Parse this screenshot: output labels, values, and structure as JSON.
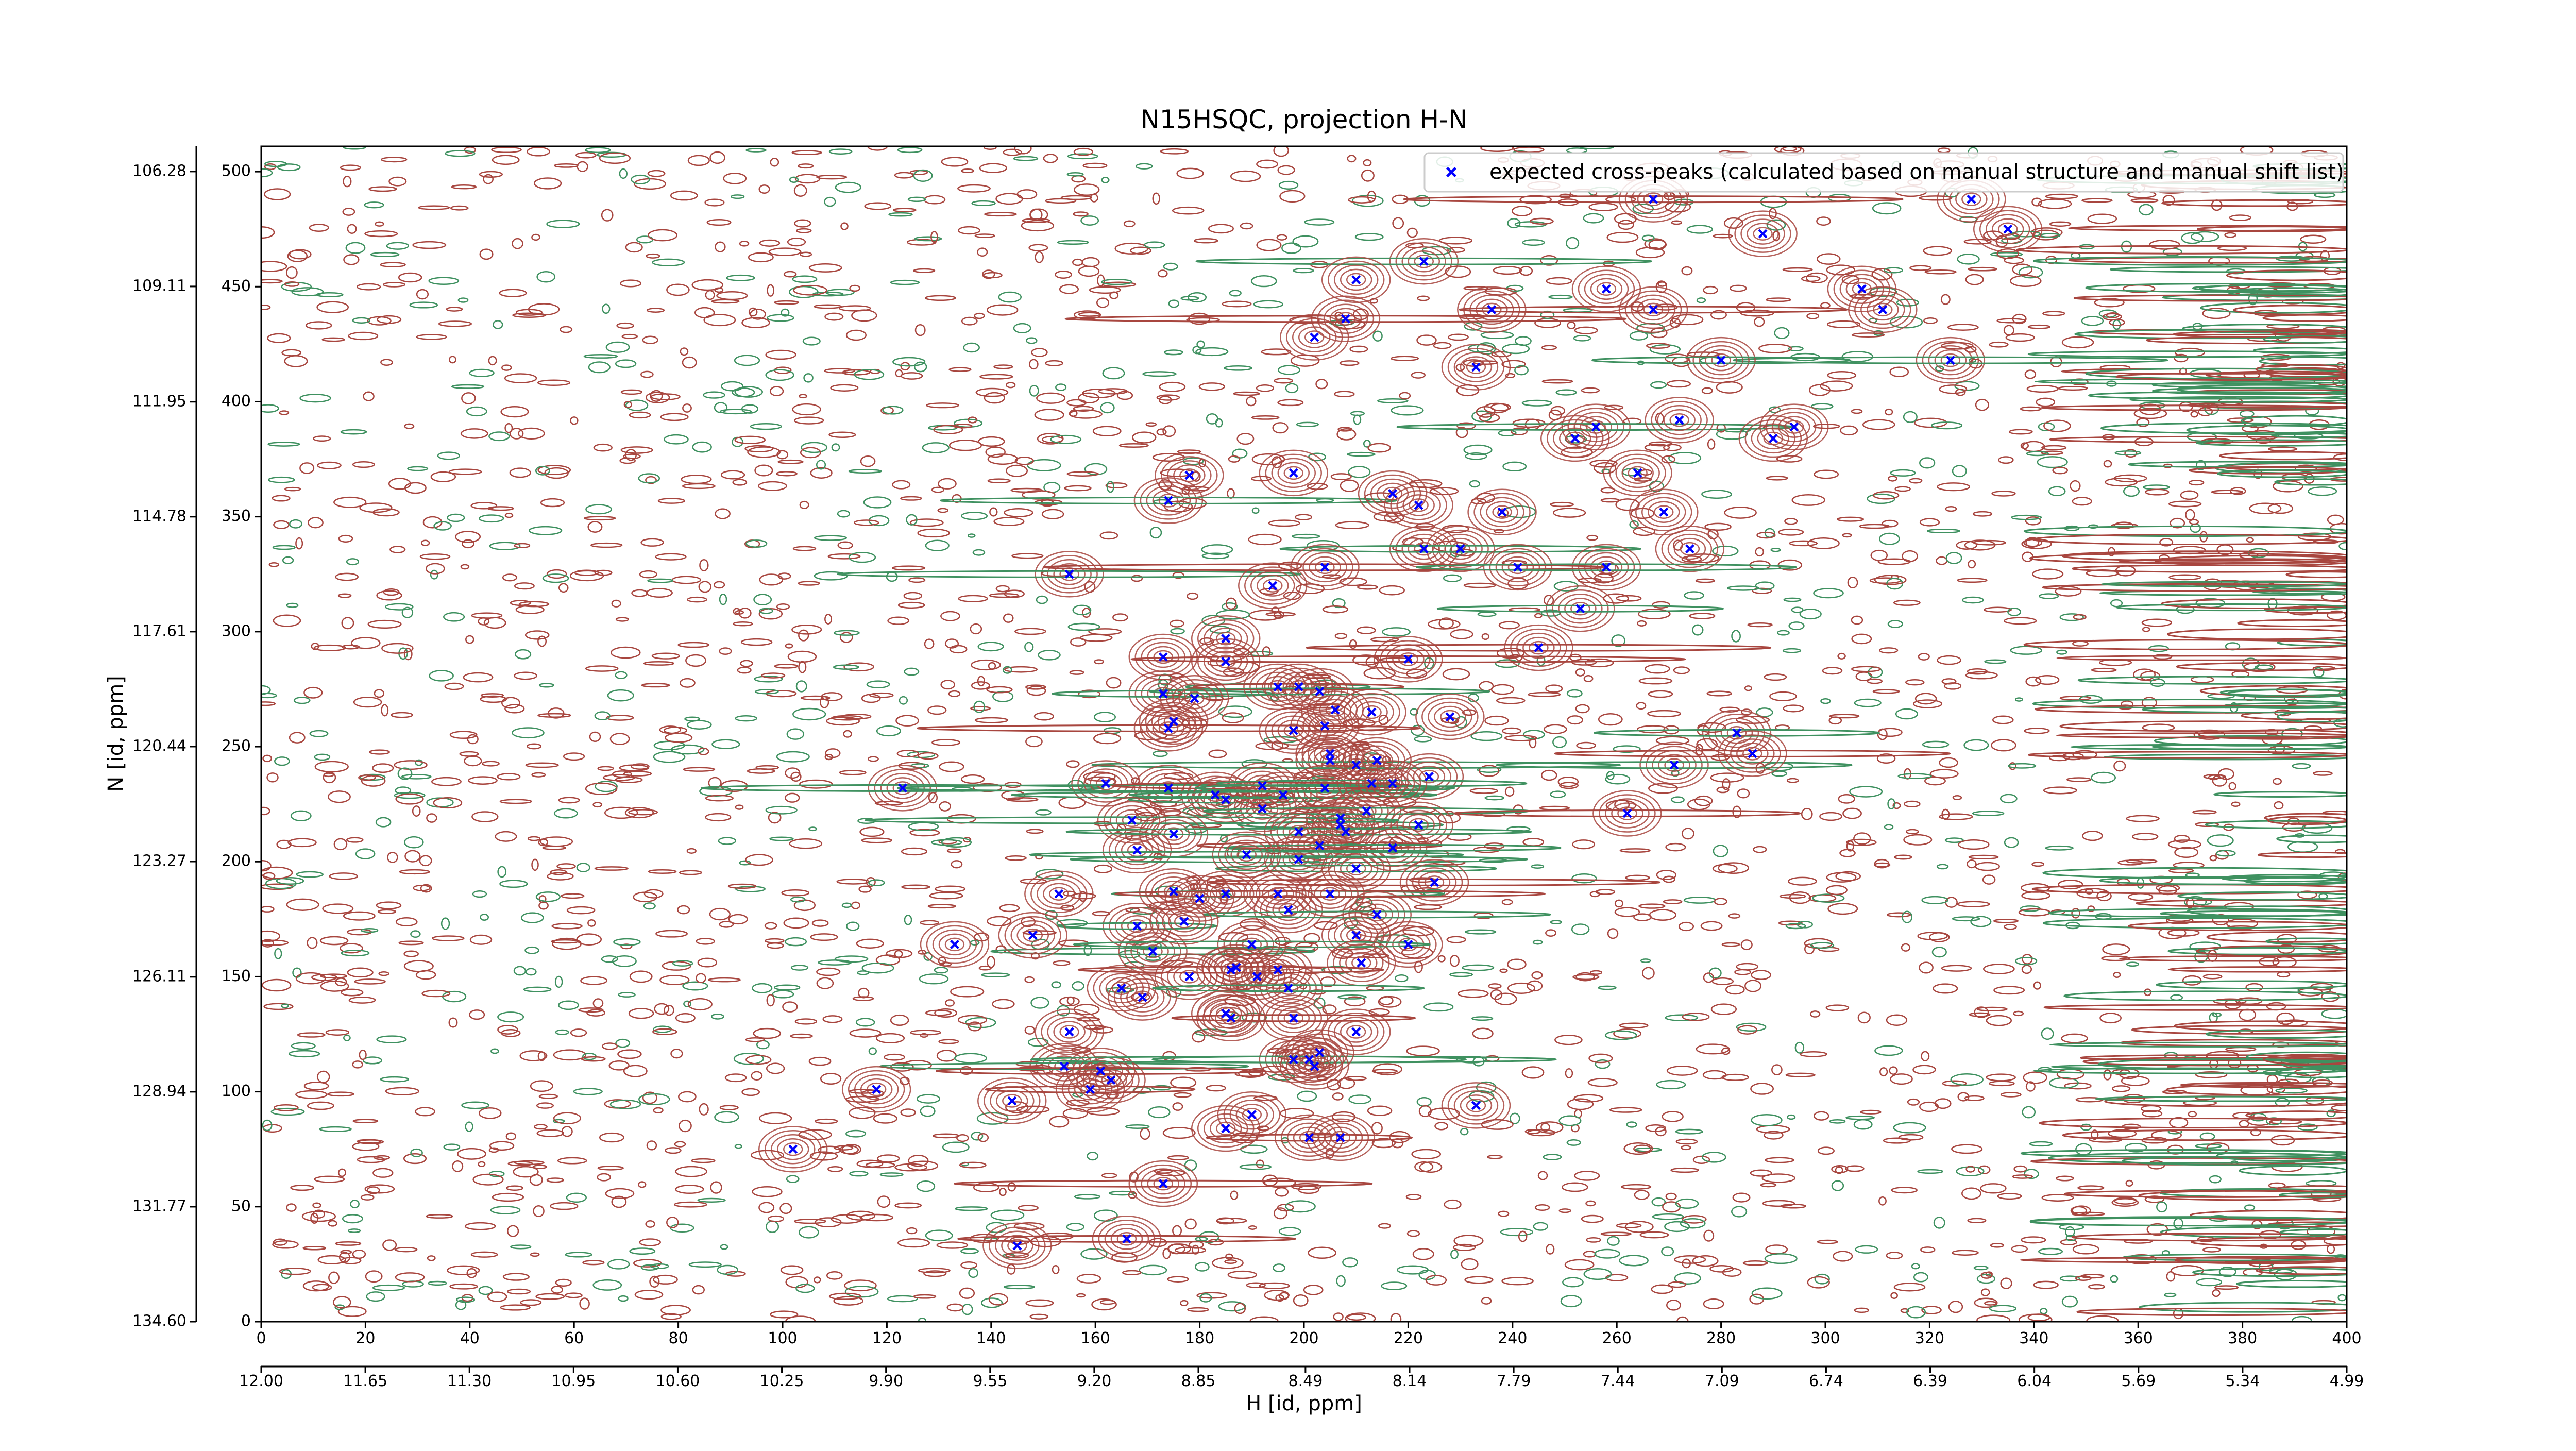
{
  "chart_data": {
    "type": "scatter",
    "title": "N15HSQC, projection H-N",
    "x_label": "H [id, ppm]",
    "y_label": "N [id, ppm]",
    "xlim": [
      0,
      400
    ],
    "xticks": [
      0,
      20,
      40,
      60,
      80,
      100,
      120,
      140,
      160,
      180,
      200,
      220,
      240,
      260,
      280,
      300,
      320,
      340,
      360,
      380,
      400
    ],
    "ylim": [
      0,
      511
    ],
    "yticks": [
      0,
      50,
      100,
      150,
      200,
      250,
      300,
      350,
      400,
      450,
      500
    ],
    "x2lim": [
      12,
      4.99
    ],
    "x2ticks": [
      {
        "value": 12,
        "label": "12.00"
      },
      11.65,
      {
        "value": 11.3,
        "label": "11.30"
      },
      10.95,
      {
        "value": 10.6,
        "label": "10.60"
      },
      10.25,
      {
        "value": 9.9,
        "label": "9.90"
      },
      9.55,
      {
        "value": 9.2,
        "label": "9.20"
      },
      8.85,
      8.49,
      8.14,
      7.79,
      7.44,
      7.09,
      6.74,
      6.39,
      6.04,
      5.69,
      5.34,
      4.99
    ],
    "y2lim": [
      134.6,
      105.66
    ],
    "y2ticks": [
      {
        "value": 134.6,
        "label": "134.60"
      },
      131.77,
      128.94,
      126.11,
      123.27,
      120.44,
      117.61,
      114.78,
      111.95,
      109.11,
      106.28
    ],
    "legend": "upper right",
    "series": [
      {
        "name": "expected cross-peaks (calculated based on manual structure and manual shift list)",
        "color": "#0000ff",
        "x": [
          267,
          288,
          328,
          335,
          223,
          210,
          236,
          258,
          267,
          208,
          202,
          233,
          307,
          311,
          324,
          280,
          256,
          252,
          272,
          290,
          294,
          178,
          198,
          174,
          217,
          222,
          238,
          264,
          269,
          274,
          223,
          230,
          204,
          241,
          258,
          155,
          194,
          253,
          185,
          185,
          220,
          245,
          173,
          173,
          195,
          199,
          203,
          175,
          174,
          198,
          204,
          206,
          213,
          205,
          205,
          210,
          214,
          224,
          271,
          283,
          286,
          228,
          123,
          162,
          174,
          183,
          185,
          192,
          192,
          196,
          204,
          207,
          207,
          208,
          212,
          213,
          217,
          222,
          262,
          167,
          168,
          175,
          199,
          203,
          199,
          210,
          217,
          225,
          153,
          175,
          180,
          185,
          189,
          195,
          197,
          205,
          214,
          168,
          177,
          171,
          148,
          133,
          220,
          210,
          190,
          178,
          186,
          187,
          191,
          195,
          165,
          169,
          211,
          197,
          198,
          185,
          186,
          155,
          210,
          154,
          161,
          163,
          159,
          198,
          201,
          203,
          202,
          144,
          118,
          190,
          233,
          185,
          201,
          207,
          102,
          173,
          166,
          145,
          179
        ],
        "y": [
          488,
          473,
          488,
          475,
          461,
          453,
          440,
          449,
          440,
          436,
          428,
          415,
          449,
          440,
          418,
          418,
          389,
          384,
          392,
          384,
          389,
          368,
          369,
          357,
          360,
          355,
          352,
          369,
          352,
          336,
          336,
          336,
          328,
          328,
          328,
          325,
          320,
          310,
          297,
          287,
          288,
          293,
          289,
          273,
          276,
          276,
          274,
          261,
          258,
          257,
          259,
          266,
          265,
          247,
          244,
          242,
          244,
          237,
          242,
          256,
          247,
          263,
          232,
          234,
          232,
          229,
          227,
          223,
          233,
          229,
          232,
          216,
          219,
          213,
          222,
          234,
          234,
          216,
          221,
          218,
          205,
          212,
          213,
          207,
          201,
          197,
          206,
          191,
          186,
          187,
          184,
          186,
          203,
          186,
          179,
          186,
          177,
          172,
          174,
          161,
          168,
          164,
          164,
          168,
          164,
          150,
          153,
          154,
          150,
          153,
          145,
          141,
          156,
          145,
          132,
          134,
          132,
          126,
          126,
          111,
          109,
          105,
          101,
          114,
          114,
          117,
          111,
          96,
          101,
          90,
          94,
          84,
          80,
          80,
          75,
          60,
          36,
          33,
          271
        ]
      }
    ]
  }
}
